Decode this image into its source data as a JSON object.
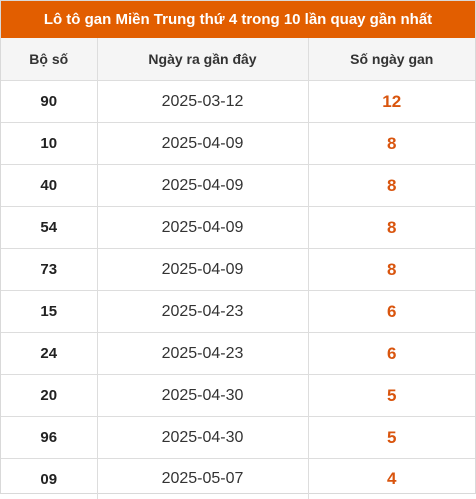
{
  "title": "Lô tô gan Miền Trung thứ 4 trong 10 lần quay gần nhất",
  "colors": {
    "header_bg": "#e25e00",
    "highlight": "#d9550e"
  },
  "table": {
    "headers": [
      "Bộ số",
      "Ngày ra gần đây",
      "Số ngày gan"
    ],
    "rows": [
      {
        "number": "90",
        "last_date": "2025-03-12",
        "days": "12"
      },
      {
        "number": "10",
        "last_date": "2025-04-09",
        "days": "8"
      },
      {
        "number": "40",
        "last_date": "2025-04-09",
        "days": "8"
      },
      {
        "number": "54",
        "last_date": "2025-04-09",
        "days": "8"
      },
      {
        "number": "73",
        "last_date": "2025-04-09",
        "days": "8"
      },
      {
        "number": "15",
        "last_date": "2025-04-23",
        "days": "6"
      },
      {
        "number": "24",
        "last_date": "2025-04-23",
        "days": "6"
      },
      {
        "number": "20",
        "last_date": "2025-04-30",
        "days": "5"
      },
      {
        "number": "96",
        "last_date": "2025-04-30",
        "days": "5"
      },
      {
        "number": "09",
        "last_date": "2025-05-07",
        "days": "4"
      }
    ]
  }
}
